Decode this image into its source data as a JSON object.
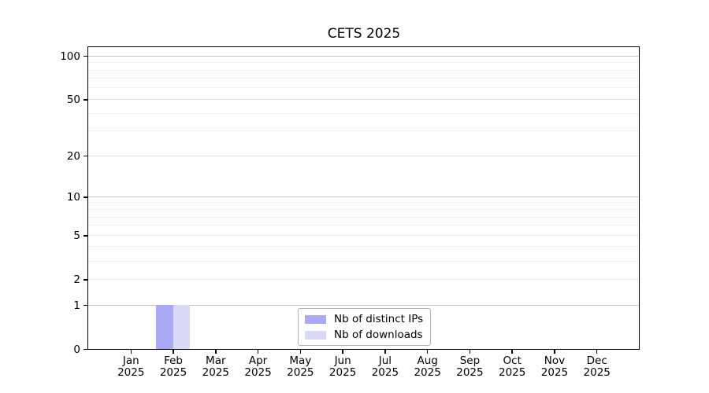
{
  "chart_data": {
    "type": "bar",
    "title": "CETS 2025",
    "categories": [
      {
        "month": "Jan",
        "year": "2025"
      },
      {
        "month": "Feb",
        "year": "2025"
      },
      {
        "month": "Mar",
        "year": "2025"
      },
      {
        "month": "Apr",
        "year": "2025"
      },
      {
        "month": "May",
        "year": "2025"
      },
      {
        "month": "Jun",
        "year": "2025"
      },
      {
        "month": "Jul",
        "year": "2025"
      },
      {
        "month": "Aug",
        "year": "2025"
      },
      {
        "month": "Sep",
        "year": "2025"
      },
      {
        "month": "Oct",
        "year": "2025"
      },
      {
        "month": "Nov",
        "year": "2025"
      },
      {
        "month": "Dec",
        "year": "2025"
      }
    ],
    "series": [
      {
        "name": "Nb of distinct IPs",
        "color": "#a9a9f6",
        "values": [
          0,
          1,
          0,
          0,
          0,
          0,
          0,
          0,
          0,
          0,
          0,
          0
        ]
      },
      {
        "name": "Nb of downloads",
        "color": "#d9d9f6",
        "values": [
          0,
          1,
          0,
          0,
          0,
          0,
          0,
          0,
          0,
          0,
          0,
          0
        ]
      }
    ],
    "xlabel": "",
    "ylabel": "",
    "yscale": "log1p",
    "ylim": [
      0,
      115
    ],
    "ytick_values": [
      0,
      1,
      2,
      5,
      10,
      20,
      50,
      100
    ],
    "ytick_labels": [
      "0",
      "1",
      "2",
      "5",
      "10",
      "20",
      "50",
      "100"
    ],
    "grid": {
      "major_values": [
        1,
        10,
        100
      ],
      "mid_values": [
        2,
        5,
        20,
        50
      ],
      "minor_values": [
        3,
        4,
        6,
        7,
        8,
        9,
        30,
        40,
        60,
        70,
        80,
        90
      ],
      "major_color": "#c6c6c6",
      "mid_color": "#e4e4e4",
      "minor_color": "#f2f2f2"
    },
    "legend_position": "lower center",
    "axis_color": "#000000",
    "background": "#ffffff"
  }
}
